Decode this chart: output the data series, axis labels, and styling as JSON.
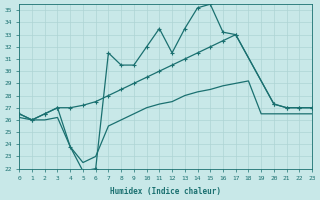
{
  "xlabel": "Humidex (Indice chaleur)",
  "background_color": "#c8e8e8",
  "grid_color": "#aed4d4",
  "line_color": "#1a7070",
  "xlim": [
    0,
    23
  ],
  "ylim": [
    22,
    35.5
  ],
  "xticks": [
    0,
    1,
    2,
    3,
    4,
    5,
    6,
    7,
    8,
    9,
    10,
    11,
    12,
    13,
    14,
    15,
    16,
    17,
    18,
    19,
    20,
    21,
    22,
    23
  ],
  "yticks": [
    22,
    23,
    24,
    25,
    26,
    27,
    28,
    29,
    30,
    31,
    32,
    33,
    34,
    35
  ],
  "line_jagged_x": [
    0,
    1,
    2,
    3,
    4,
    5,
    6,
    7,
    8,
    9,
    10,
    11,
    12,
    13,
    14,
    15,
    16,
    17,
    20,
    21,
    22,
    23
  ],
  "line_jagged_y": [
    26.5,
    26.0,
    26.5,
    27.0,
    23.8,
    21.8,
    22.0,
    31.5,
    30.5,
    30.5,
    32.0,
    33.5,
    31.5,
    33.5,
    35.2,
    35.5,
    33.2,
    33.0,
    27.3,
    27.0,
    27.0,
    27.0
  ],
  "line_mid_x": [
    0,
    1,
    2,
    3,
    4,
    5,
    6,
    7,
    8,
    9,
    10,
    11,
    12,
    13,
    14,
    15,
    16,
    17,
    20,
    21,
    22,
    23
  ],
  "line_mid_y": [
    26.5,
    26.0,
    26.5,
    27.0,
    27.0,
    27.2,
    27.5,
    28.0,
    28.5,
    29.0,
    29.5,
    30.0,
    30.5,
    31.0,
    31.5,
    32.0,
    32.5,
    33.0,
    27.3,
    27.0,
    27.0,
    27.0
  ],
  "line_low_x": [
    0,
    1,
    2,
    3,
    4,
    5,
    6,
    7,
    8,
    9,
    10,
    11,
    12,
    13,
    14,
    15,
    16,
    17,
    18,
    19,
    20,
    21,
    22,
    23
  ],
  "line_low_y": [
    26.2,
    26.0,
    26.0,
    26.2,
    23.8,
    22.5,
    23.0,
    25.5,
    26.0,
    26.5,
    27.0,
    27.3,
    27.5,
    28.0,
    28.3,
    28.5,
    28.8,
    29.0,
    29.2,
    26.5,
    26.5,
    26.5,
    26.5,
    26.5
  ]
}
